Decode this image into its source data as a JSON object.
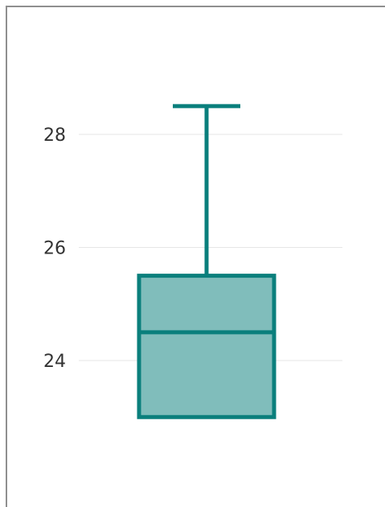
{
  "chart_data": {
    "type": "box",
    "title": "",
    "xlabel": "",
    "ylabel": "",
    "ylim": [
      22,
      30
    ],
    "grid": true,
    "y_ticks": [
      {
        "value": 24,
        "label": "24"
      },
      {
        "value": 26,
        "label": "26"
      },
      {
        "value": 28,
        "label": "28"
      }
    ],
    "box": {
      "whisker_low": 23.0,
      "q1": 23.0,
      "median": 24.5,
      "q3": 25.5,
      "whisker_high": 28.5
    },
    "colors": {
      "stroke": "#0a7f7c",
      "fill": "#80bdbb",
      "grid": "#e6e6e6",
      "frame": "#8f8f8f",
      "tick_text": "#333333"
    }
  }
}
